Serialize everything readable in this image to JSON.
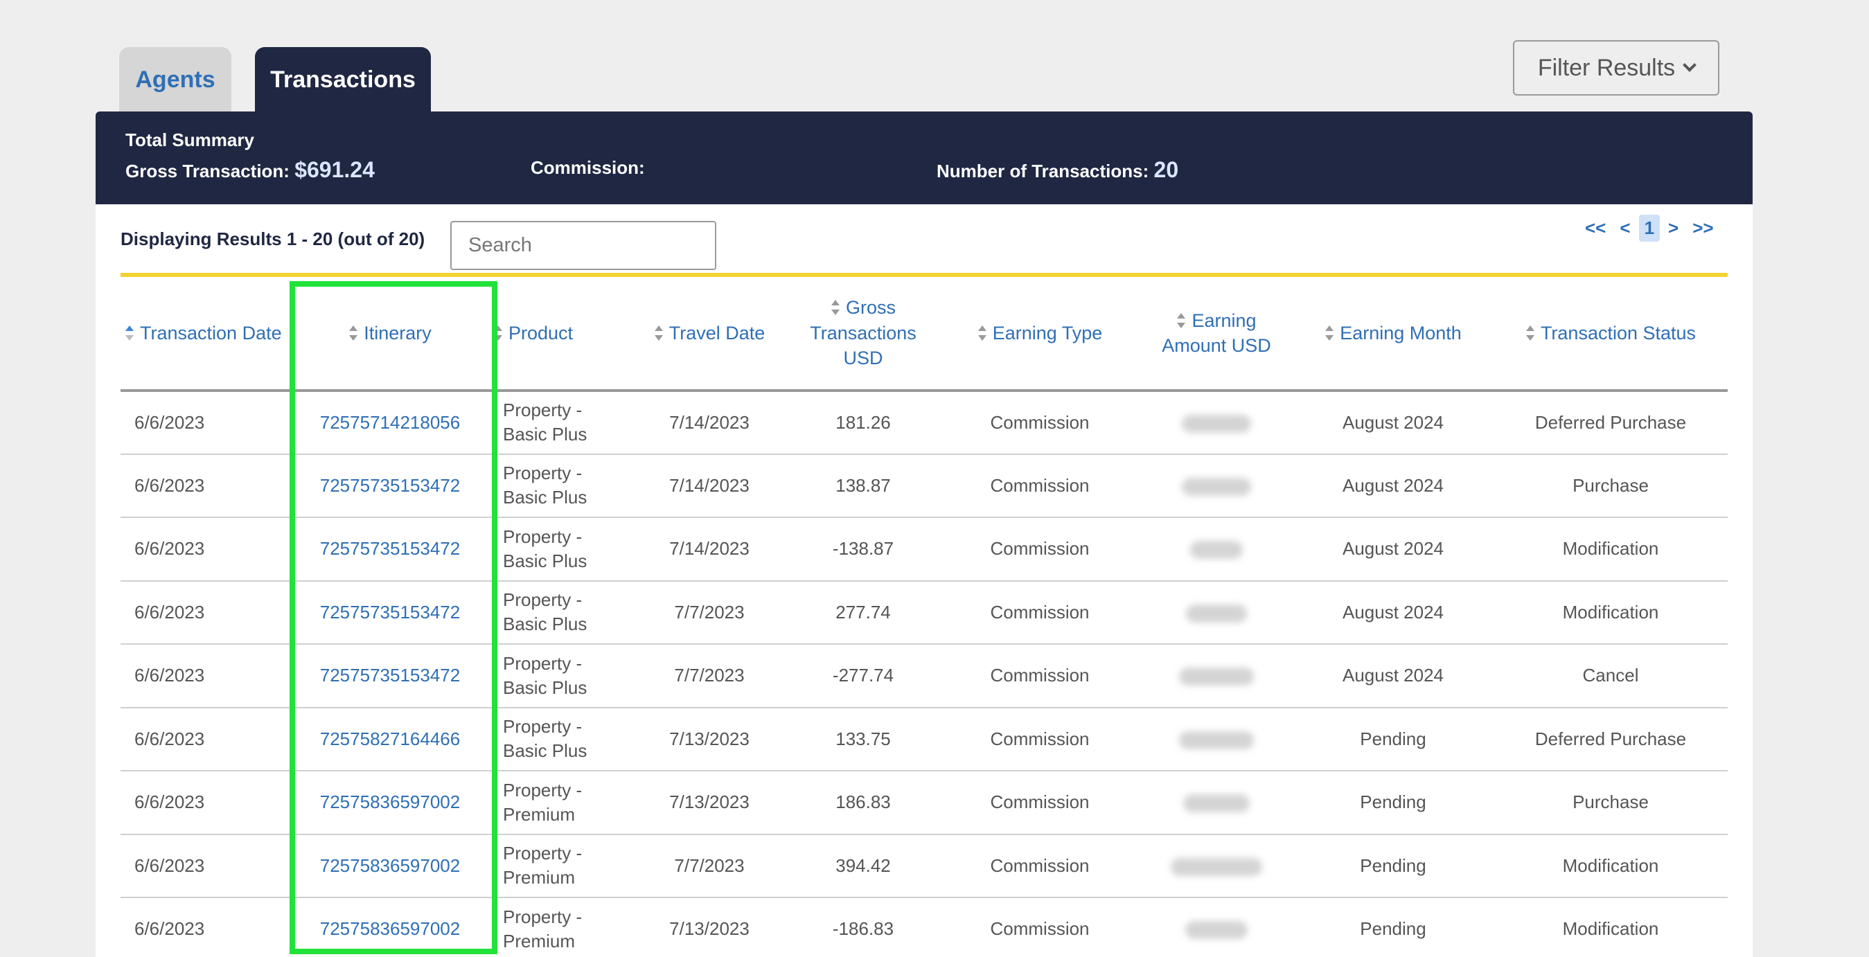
{
  "tabs": [
    {
      "label": "Agents",
      "active": false
    },
    {
      "label": "Transactions",
      "active": true
    }
  ],
  "filter_button": {
    "label": "Filter Results",
    "icon": "chevron-down-icon"
  },
  "summary": {
    "title": "Total Summary",
    "gross_label": "Gross Transaction:",
    "gross_value": "$691.24",
    "commission_label": "Commission:",
    "count_label": "Number of Transactions:",
    "count_value": "20"
  },
  "results": {
    "displaying": "Displaying Results 1 - 20 (out of 20)",
    "search_placeholder": "Search"
  },
  "pagination": {
    "first": "<<",
    "prev": "<",
    "current": "1",
    "next": ">",
    "last": ">>"
  },
  "columns": [
    "Transaction Date",
    "Itinerary",
    "Product",
    "Travel Date",
    "Gross Transactions USD",
    "Earning Type",
    "Earning Amount USD",
    "Earning Month",
    "Transaction Status"
  ],
  "rows": [
    {
      "date": "6/6/2023",
      "itinerary": "72575714218056",
      "product": "Property - Basic Plus",
      "travel": "7/14/2023",
      "gross": "181.26",
      "etype": "Commission",
      "emonth": "August 2024",
      "status": "Deferred Purchase"
    },
    {
      "date": "6/6/2023",
      "itinerary": "72575735153472",
      "product": "Property - Basic Plus",
      "travel": "7/14/2023",
      "gross": "138.87",
      "etype": "Commission",
      "emonth": "August 2024",
      "status": "Purchase"
    },
    {
      "date": "6/6/2023",
      "itinerary": "72575735153472",
      "product": "Property - Basic Plus",
      "travel": "7/14/2023",
      "gross": "-138.87",
      "etype": "Commission",
      "emonth": "August 2024",
      "status": "Modification"
    },
    {
      "date": "6/6/2023",
      "itinerary": "72575735153472",
      "product": "Property - Basic Plus",
      "travel": "7/7/2023",
      "gross": "277.74",
      "etype": "Commission",
      "emonth": "August 2024",
      "status": "Modification"
    },
    {
      "date": "6/6/2023",
      "itinerary": "72575735153472",
      "product": "Property - Basic Plus",
      "travel": "7/7/2023",
      "gross": "-277.74",
      "etype": "Commission",
      "emonth": "August 2024",
      "status": "Cancel"
    },
    {
      "date": "6/6/2023",
      "itinerary": "72575827164466",
      "product": "Property - Basic Plus",
      "travel": "7/13/2023",
      "gross": "133.75",
      "etype": "Commission",
      "emonth": "Pending",
      "status": "Deferred Purchase"
    },
    {
      "date": "6/6/2023",
      "itinerary": "72575836597002",
      "product": "Property - Premium",
      "travel": "7/13/2023",
      "gross": "186.83",
      "etype": "Commission",
      "emonth": "Pending",
      "status": "Purchase"
    },
    {
      "date": "6/6/2023",
      "itinerary": "72575836597002",
      "product": "Property - Premium",
      "travel": "7/7/2023",
      "gross": "394.42",
      "etype": "Commission",
      "emonth": "Pending",
      "status": "Modification"
    },
    {
      "date": "6/6/2023",
      "itinerary": "72575836597002",
      "product": "Property - Premium",
      "travel": "7/13/2023",
      "gross": "-186.83",
      "etype": "Commission",
      "emonth": "Pending",
      "status": "Modification"
    }
  ]
}
